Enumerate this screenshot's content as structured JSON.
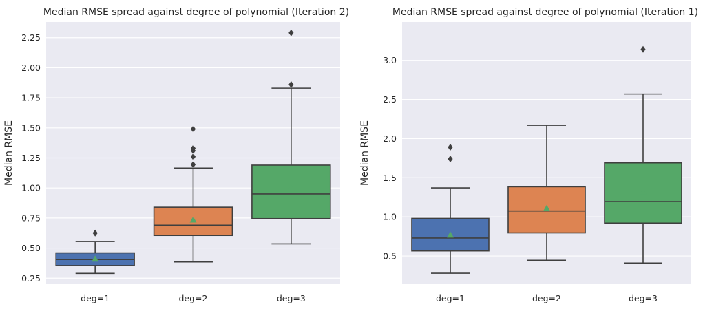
{
  "chart_data": [
    {
      "type": "box",
      "title": "Median RMSE spread against degree of polynomial (Iteration 2)",
      "xlabel": "",
      "ylabel": "Median RMSE",
      "ylim": [
        0.2,
        2.38
      ],
      "yticks": [
        0.25,
        0.5,
        0.75,
        1.0,
        1.25,
        1.5,
        1.75,
        2.0,
        2.25
      ],
      "ytick_labels": [
        "0.25",
        "0.50",
        "0.75",
        "1.00",
        "1.25",
        "1.50",
        "1.75",
        "2.00",
        "2.25"
      ],
      "grid": true,
      "categories": [
        "deg=1",
        "deg=2",
        "deg=3"
      ],
      "colors": [
        "#4c72b0",
        "#dd8452",
        "#55a868"
      ],
      "boxes": [
        {
          "whisker_low": 0.29,
          "q1": 0.355,
          "median": 0.405,
          "q3": 0.46,
          "whisker_high": 0.555,
          "mean": 0.41,
          "outliers": [
            0.625
          ]
        },
        {
          "whisker_low": 0.385,
          "q1": 0.605,
          "median": 0.69,
          "q3": 0.84,
          "whisker_high": 1.165,
          "mean": 0.735,
          "outliers": [
            1.195,
            1.26,
            1.31,
            1.33,
            1.49
          ]
        },
        {
          "whisker_low": 0.535,
          "q1": 0.745,
          "median": 0.95,
          "q3": 1.19,
          "whisker_high": 1.83,
          "mean": 1.0,
          "outliers": [
            1.86,
            2.29
          ]
        }
      ]
    },
    {
      "type": "box",
      "title": "Median RMSE spread against degree of polynomial (Iteration 1)",
      "xlabel": "",
      "ylabel": "Median RMSE",
      "ylim": [
        0.14,
        3.49
      ],
      "yticks": [
        0.5,
        1.0,
        1.5,
        2.0,
        2.5,
        3.0
      ],
      "ytick_labels": [
        "0.5",
        "1.0",
        "1.5",
        "2.0",
        "2.5",
        "3.0"
      ],
      "grid": true,
      "categories": [
        "deg=1",
        "deg=2",
        "deg=3"
      ],
      "colors": [
        "#4c72b0",
        "#dd8452",
        "#55a868"
      ],
      "boxes": [
        {
          "whisker_low": 0.28,
          "q1": 0.565,
          "median": 0.73,
          "q3": 0.98,
          "whisker_high": 1.37,
          "mean": 0.77,
          "outliers": [
            1.74,
            1.89
          ]
        },
        {
          "whisker_low": 0.445,
          "q1": 0.795,
          "median": 1.075,
          "q3": 1.385,
          "whisker_high": 2.17,
          "mean": 1.11,
          "outliers": []
        },
        {
          "whisker_low": 0.41,
          "q1": 0.92,
          "median": 1.195,
          "q3": 1.69,
          "whisker_high": 2.57,
          "mean": 1.32,
          "outliers": [
            3.14
          ]
        }
      ]
    }
  ]
}
